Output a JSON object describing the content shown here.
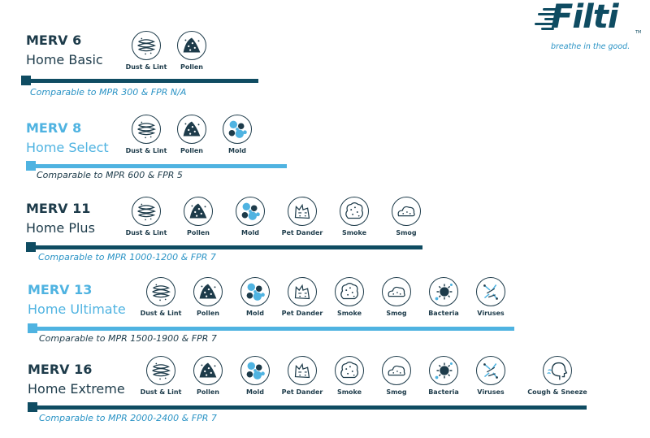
{
  "brand": {
    "name": "Filti",
    "trademark": "TM",
    "tagline": "breathe in the good.",
    "colors": {
      "navy": "#0f4c62",
      "dark": "#1d3b4a",
      "accent": "#4fb3e1",
      "text_accent": "#2a93c5"
    }
  },
  "tiers": [
    {
      "merv": "MERV 6",
      "name": "Home Basic",
      "comparison": "Comparable to MPR 300 & FPR N/A",
      "filters": [
        {
          "label": "Dust & Lint",
          "icon": "dust-lint-icon"
        },
        {
          "label": "Pollen",
          "icon": "pollen-icon"
        }
      ]
    },
    {
      "merv": "MERV 8",
      "name": "Home Select",
      "comparison": "Comparable to MPR 600 & FPR 5",
      "filters": [
        {
          "label": "Dust & Lint",
          "icon": "dust-lint-icon"
        },
        {
          "label": "Pollen",
          "icon": "pollen-icon"
        },
        {
          "label": "Mold",
          "icon": "mold-icon"
        }
      ]
    },
    {
      "merv": "MERV 11",
      "name": "Home Plus",
      "comparison": "Comparable to MPR 1000-1200 & FPR 7",
      "filters": [
        {
          "label": "Dust & Lint",
          "icon": "dust-lint-icon"
        },
        {
          "label": "Pollen",
          "icon": "pollen-icon"
        },
        {
          "label": "Mold",
          "icon": "mold-icon"
        },
        {
          "label": "Pet Dander",
          "icon": "pet-dander-icon"
        },
        {
          "label": "Smoke",
          "icon": "smoke-icon"
        },
        {
          "label": "Smog",
          "icon": "smog-icon"
        }
      ]
    },
    {
      "merv": "MERV 13",
      "name": "Home Ultimate",
      "comparison": "Comparable to MPR 1500-1900 & FPR 7",
      "filters": [
        {
          "label": "Dust & Lint",
          "icon": "dust-lint-icon"
        },
        {
          "label": "Pollen",
          "icon": "pollen-icon"
        },
        {
          "label": "Mold",
          "icon": "mold-icon"
        },
        {
          "label": "Pet Dander",
          "icon": "pet-dander-icon"
        },
        {
          "label": "Smoke",
          "icon": "smoke-icon"
        },
        {
          "label": "Smog",
          "icon": "smog-icon"
        },
        {
          "label": "Bacteria",
          "icon": "bacteria-icon"
        },
        {
          "label": "Viruses",
          "icon": "virus-icon"
        }
      ]
    },
    {
      "merv": "MERV 16",
      "name": "Home Extreme",
      "comparison": "Comparable to MPR 2000-2400 & FPR 7",
      "filters": [
        {
          "label": "Dust & Lint",
          "icon": "dust-lint-icon"
        },
        {
          "label": "Pollen",
          "icon": "pollen-icon"
        },
        {
          "label": "Mold",
          "icon": "mold-icon"
        },
        {
          "label": "Pet Dander",
          "icon": "pet-dander-icon"
        },
        {
          "label": "Smoke",
          "icon": "smoke-icon"
        },
        {
          "label": "Smog",
          "icon": "smog-icon"
        },
        {
          "label": "Bacteria",
          "icon": "bacteria-icon"
        },
        {
          "label": "Viruses",
          "icon": "virus-icon"
        },
        {
          "label": "Cough & Sneeze",
          "icon": "cough-sneeze-icon"
        }
      ]
    }
  ]
}
